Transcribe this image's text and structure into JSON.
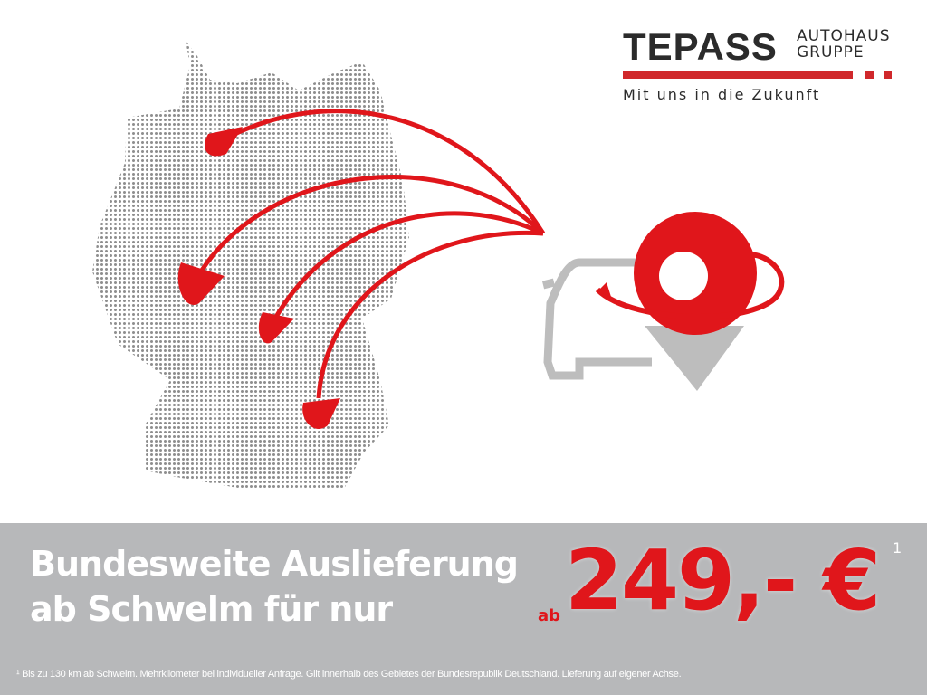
{
  "logo": {
    "name": "TEPASS",
    "sub_line1": "AUTOHAUS",
    "sub_line2": "GRUPPE",
    "tagline": "Mit uns in die Zukunft",
    "accent": "#d0282b"
  },
  "banner": {
    "headline_line1": "Bundesweite Auslieferung",
    "headline_line2": "ab Schwelm für nur",
    "price_prefix": "ab",
    "price": "249,- €",
    "footnote_marker": "1",
    "footnote": "¹ Bis zu 130 km ab Schwelm. Mehrkilometer bei individueller Anfrage. Gilt innerhalb des Gebietes der Bundesrepublik Deutschland. Lieferung auf eigener Achse.",
    "background": "#b7b8ba",
    "price_color": "#e0161b"
  },
  "icons": [
    "germany-dot-map",
    "delivery-arrows",
    "car-icon",
    "location-pin-icon"
  ]
}
